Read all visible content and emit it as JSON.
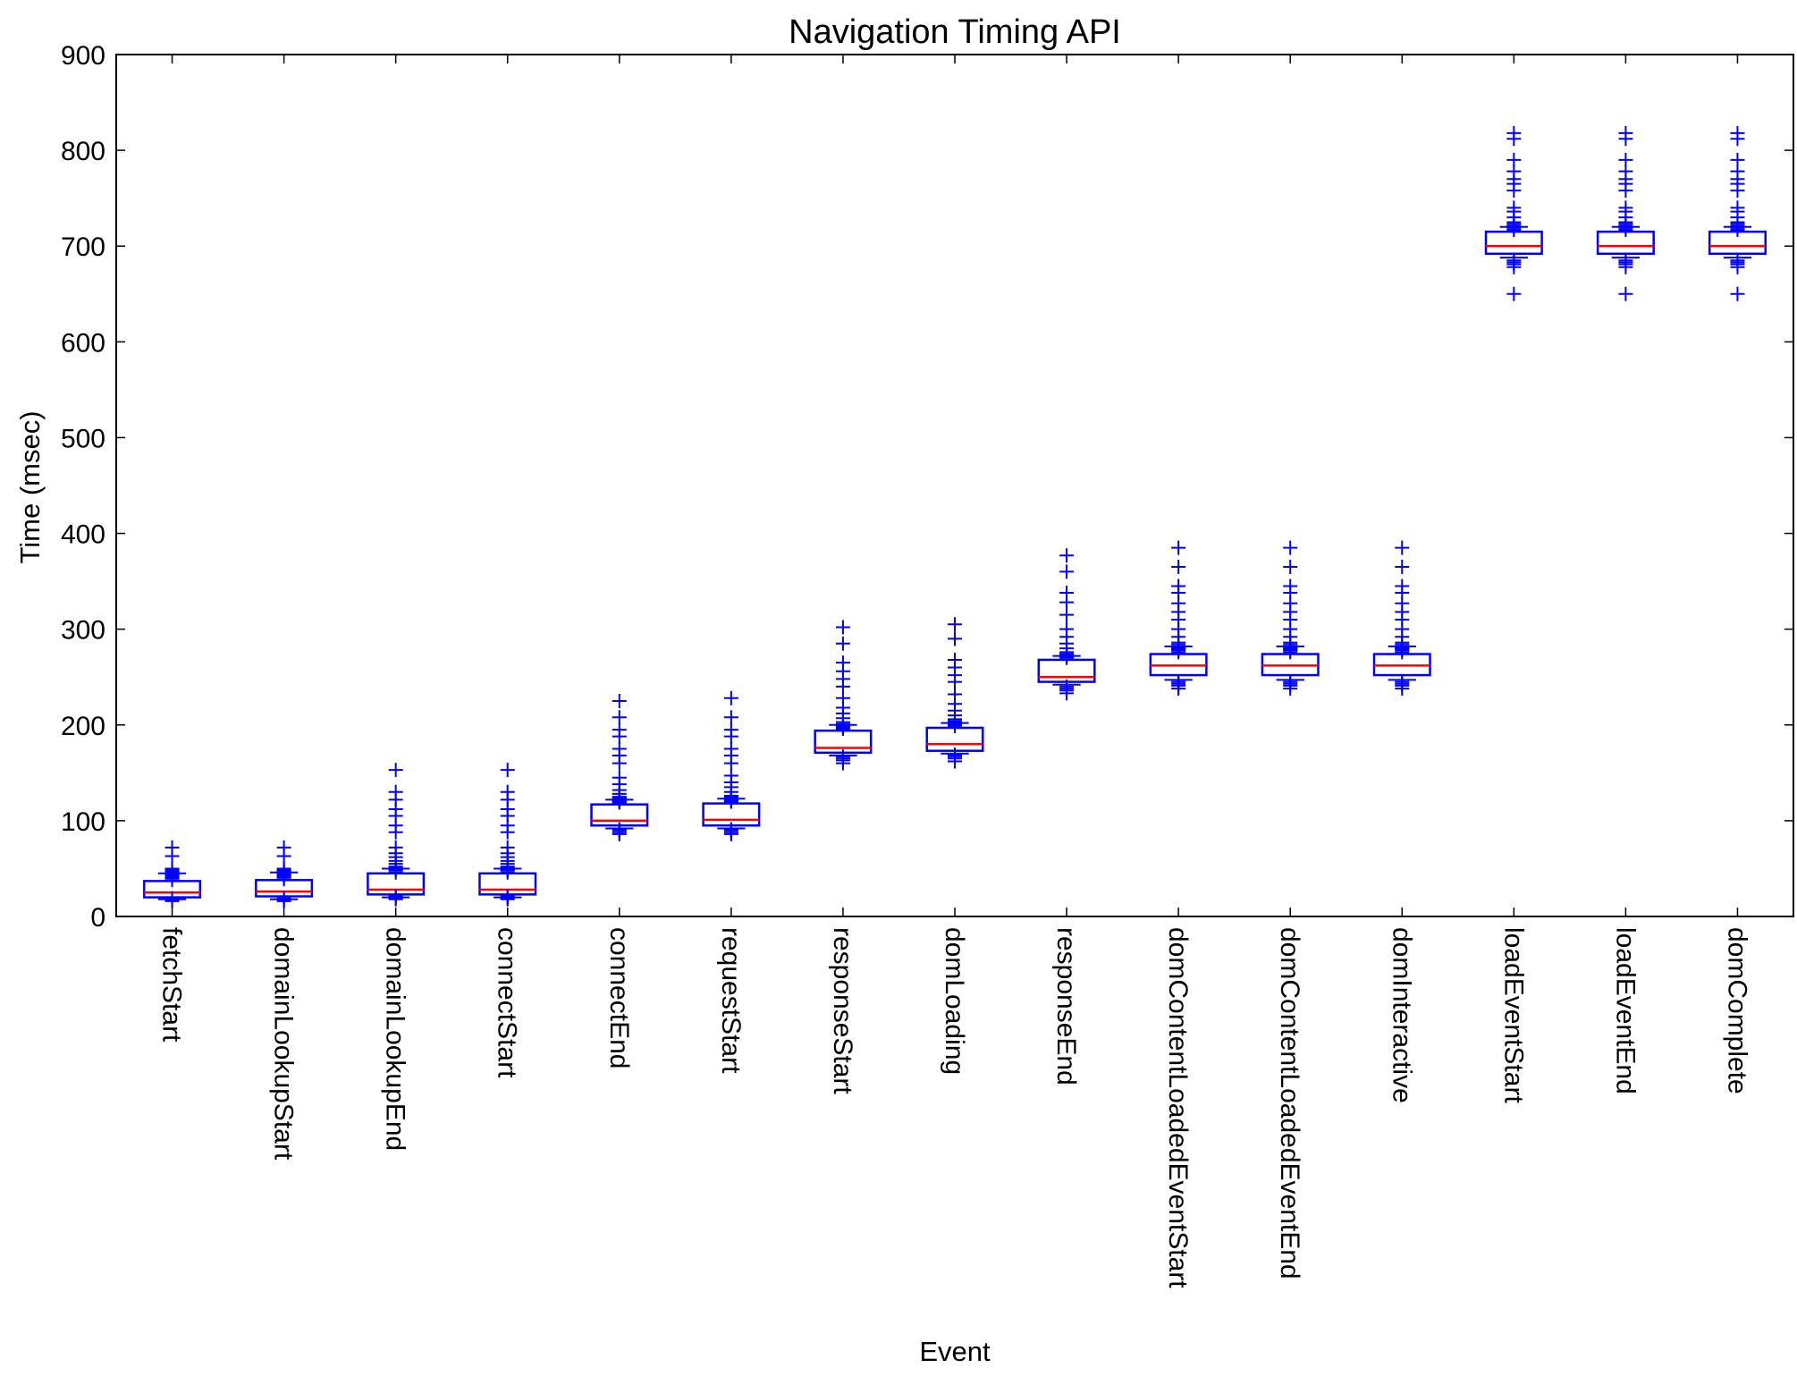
{
  "chart_data": {
    "type": "box",
    "title": "Navigation Timing API",
    "xlabel": "Event",
    "ylabel": "Time (msec)",
    "ylim": [
      0,
      900
    ],
    "yticks": [
      0,
      100,
      200,
      300,
      400,
      500,
      600,
      700,
      800,
      900
    ],
    "grid": false,
    "legend": "none",
    "colors": {
      "box": "#0000ff",
      "median": "#ff0000",
      "outlier": "#0000ff",
      "axis": "#000000"
    },
    "categories": [
      "fetchStart",
      "domainLookupStart",
      "domainLookupEnd",
      "connectStart",
      "connectEnd",
      "requestStart",
      "responseStart",
      "domLoading",
      "responseEnd",
      "domContentLoadedEventStart",
      "domContentLoadedEventEnd",
      "domInteractive",
      "loadEventStart",
      "loadEventEnd",
      "domComplete"
    ],
    "boxes": [
      {
        "q1": 20,
        "median": 25,
        "q3": 37,
        "low": 18,
        "high": 45,
        "outliers": [
          16,
          17,
          18,
          19,
          38,
          40,
          41,
          42,
          43,
          44,
          45,
          46,
          47,
          48,
          49,
          50,
          63,
          72
        ]
      },
      {
        "q1": 21,
        "median": 26,
        "q3": 38,
        "low": 18,
        "high": 46,
        "outliers": [
          16,
          17,
          18,
          19,
          39,
          41,
          42,
          43,
          44,
          45,
          46,
          47,
          48,
          49,
          50,
          63,
          72
        ]
      },
      {
        "q1": 23,
        "median": 28,
        "q3": 45,
        "low": 20,
        "high": 50,
        "outliers": [
          18,
          19,
          20,
          21,
          46,
          48,
          49,
          50,
          51,
          52,
          55,
          58,
          62,
          66,
          72,
          88,
          95,
          105,
          112,
          122,
          130,
          153
        ]
      },
      {
        "q1": 23,
        "median": 28,
        "q3": 45,
        "low": 20,
        "high": 50,
        "outliers": [
          18,
          19,
          20,
          21,
          46,
          48,
          49,
          50,
          51,
          52,
          55,
          58,
          62,
          66,
          72,
          88,
          95,
          105,
          112,
          122,
          130,
          153
        ]
      },
      {
        "q1": 95,
        "median": 100,
        "q3": 117,
        "low": 92,
        "high": 122,
        "outliers": [
          86,
          88,
          90,
          91,
          119,
          120,
          121,
          122,
          123,
          124,
          125,
          128,
          132,
          138,
          145,
          160,
          168,
          175,
          188,
          195,
          208,
          225
        ]
      },
      {
        "q1": 95,
        "median": 101,
        "q3": 118,
        "low": 92,
        "high": 123,
        "outliers": [
          86,
          88,
          90,
          91,
          120,
          121,
          122,
          123,
          124,
          125,
          126,
          130,
          135,
          140,
          147,
          160,
          168,
          175,
          188,
          195,
          208,
          228
        ]
      },
      {
        "q1": 171,
        "median": 176,
        "q3": 194,
        "low": 168,
        "high": 200,
        "outliers": [
          160,
          163,
          165,
          167,
          196,
          197,
          198,
          199,
          200,
          201,
          203,
          207,
          212,
          218,
          228,
          240,
          248,
          256,
          265,
          285,
          302
        ]
      },
      {
        "q1": 173,
        "median": 180,
        "q3": 197,
        "low": 170,
        "high": 202,
        "outliers": [
          162,
          165,
          167,
          169,
          199,
          200,
          201,
          202,
          203,
          204,
          206,
          210,
          215,
          222,
          232,
          245,
          252,
          260,
          268,
          290,
          305
        ]
      },
      {
        "q1": 245,
        "median": 250,
        "q3": 268,
        "low": 242,
        "high": 272,
        "outliers": [
          233,
          236,
          238,
          240,
          270,
          271,
          272,
          273,
          274,
          276,
          280,
          285,
          292,
          300,
          315,
          328,
          338,
          360,
          377
        ]
      },
      {
        "q1": 252,
        "median": 262,
        "q3": 274,
        "low": 247,
        "high": 282,
        "outliers": [
          238,
          241,
          243,
          245,
          276,
          278,
          279,
          280,
          281,
          282,
          284,
          286,
          292,
          300,
          310,
          318,
          327,
          338,
          345,
          365,
          385
        ]
      },
      {
        "q1": 252,
        "median": 262,
        "q3": 274,
        "low": 247,
        "high": 282,
        "outliers": [
          238,
          241,
          243,
          245,
          276,
          278,
          279,
          280,
          281,
          282,
          284,
          286,
          292,
          300,
          310,
          318,
          327,
          338,
          345,
          365,
          385
        ]
      },
      {
        "q1": 252,
        "median": 262,
        "q3": 274,
        "low": 247,
        "high": 282,
        "outliers": [
          238,
          241,
          243,
          245,
          276,
          278,
          279,
          280,
          281,
          282,
          284,
          286,
          292,
          300,
          310,
          318,
          327,
          338,
          345,
          365,
          385
        ]
      },
      {
        "q1": 692,
        "median": 700,
        "q3": 715,
        "low": 688,
        "high": 720,
        "outliers": [
          650,
          678,
          681,
          683,
          685,
          717,
          719,
          720,
          721,
          723,
          725,
          730,
          736,
          740,
          758,
          765,
          770,
          778,
          790,
          812,
          818
        ]
      },
      {
        "q1": 692,
        "median": 700,
        "q3": 715,
        "low": 688,
        "high": 720,
        "outliers": [
          650,
          678,
          681,
          683,
          685,
          717,
          719,
          720,
          721,
          723,
          725,
          730,
          736,
          740,
          758,
          765,
          770,
          778,
          790,
          812,
          818
        ]
      },
      {
        "q1": 692,
        "median": 700,
        "q3": 715,
        "low": 688,
        "high": 720,
        "outliers": [
          650,
          678,
          681,
          683,
          685,
          717,
          719,
          720,
          721,
          723,
          725,
          730,
          736,
          740,
          758,
          765,
          770,
          778,
          790,
          812,
          818
        ]
      }
    ]
  }
}
